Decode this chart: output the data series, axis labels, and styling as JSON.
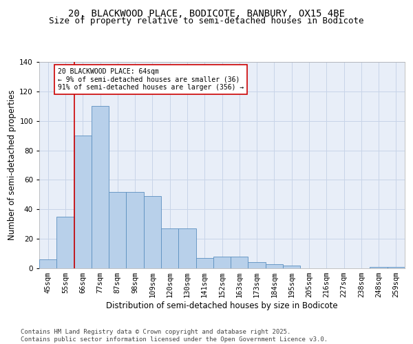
{
  "title_line1": "20, BLACKWOOD PLACE, BODICOTE, BANBURY, OX15 4BE",
  "title_line2": "Size of property relative to semi-detached houses in Bodicote",
  "xlabel": "Distribution of semi-detached houses by size in Bodicote",
  "ylabel": "Number of semi-detached properties",
  "categories": [
    "45sqm",
    "55sqm",
    "66sqm",
    "77sqm",
    "87sqm",
    "98sqm",
    "109sqm",
    "120sqm",
    "130sqm",
    "141sqm",
    "152sqm",
    "163sqm",
    "173sqm",
    "184sqm",
    "195sqm",
    "205sqm",
    "216sqm",
    "227sqm",
    "238sqm",
    "248sqm",
    "259sqm"
  ],
  "values": [
    6,
    35,
    90,
    110,
    52,
    52,
    49,
    27,
    27,
    7,
    8,
    8,
    4,
    3,
    2,
    0,
    0,
    0,
    0,
    1,
    1
  ],
  "bar_color": "#b8d0ea",
  "bar_edge_color": "#5a8fc0",
  "vline_color": "#cc0000",
  "vline_x": 1.5,
  "annotation_text": "20 BLACKWOOD PLACE: 64sqm\n← 9% of semi-detached houses are smaller (36)\n91% of semi-detached houses are larger (356) →",
  "annotation_box_edgecolor": "#cc0000",
  "ylim": [
    0,
    140
  ],
  "yticks": [
    0,
    20,
    40,
    60,
    80,
    100,
    120,
    140
  ],
  "grid_color": "#c8d4e8",
  "background_color": "#e8eef8",
  "footer_text": "Contains HM Land Registry data © Crown copyright and database right 2025.\nContains public sector information licensed under the Open Government Licence v3.0.",
  "title_fontsize": 10,
  "subtitle_fontsize": 9,
  "axis_label_fontsize": 8.5,
  "tick_fontsize": 7.5,
  "annotation_fontsize": 7,
  "footer_fontsize": 6.5
}
